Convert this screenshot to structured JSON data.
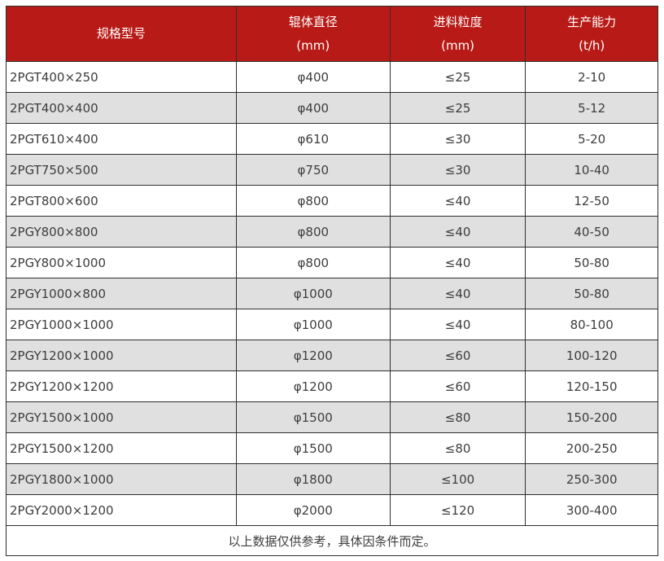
{
  "table": {
    "columns": [
      {
        "label": "规格型号",
        "unit": ""
      },
      {
        "label": "辊体直径",
        "unit": "(mm)"
      },
      {
        "label": "进料粒度",
        "unit": "(mm)"
      },
      {
        "label": "生产能力",
        "unit": "(t/h)"
      }
    ],
    "rows": [
      [
        "2PGT400×250",
        "φ400",
        "≤25",
        "2-10"
      ],
      [
        "2PGT400×400",
        "φ400",
        "≤25",
        "5-12"
      ],
      [
        "2PGT610×400",
        "φ610",
        "≤30",
        "5-20"
      ],
      [
        "2PGT750×500",
        "φ750",
        "≤30",
        "10-40"
      ],
      [
        "2PGT800×600",
        "φ800",
        "≤40",
        "12-50"
      ],
      [
        "2PGY800×800",
        "φ800",
        "≤40",
        "40-50"
      ],
      [
        "2PGY800×1000",
        "φ800",
        "≤40",
        "50-80"
      ],
      [
        "2PGY1000×800",
        "φ1000",
        "≤40",
        "50-80"
      ],
      [
        "2PGY1000×1000",
        "φ1000",
        "≤40",
        "80-100"
      ],
      [
        "2PGY1200×1000",
        "φ1200",
        "≤60",
        "100-120"
      ],
      [
        "2PGY1200×1200",
        "φ1200",
        "≤60",
        "120-150"
      ],
      [
        "2PGY1500×1000",
        "φ1500",
        "≤80",
        "150-200"
      ],
      [
        "2PGY1500×1200",
        "φ1500",
        "≤80",
        "200-250"
      ],
      [
        "2PGY1800×1000",
        "φ1800",
        "≤100",
        "250-300"
      ],
      [
        "2PGY2000×1200",
        "φ2000",
        "≤120",
        "300-400"
      ]
    ],
    "footer": "以上数据仅供参考，具体因条件而定。",
    "colors": {
      "header_bg": "#b81b17",
      "header_text": "#ffffff",
      "row_bg": "#ffffff",
      "row_alt_bg": "#e0e0e0",
      "border": "#2e2e2e",
      "cell_text": "#3d3d3d"
    }
  }
}
